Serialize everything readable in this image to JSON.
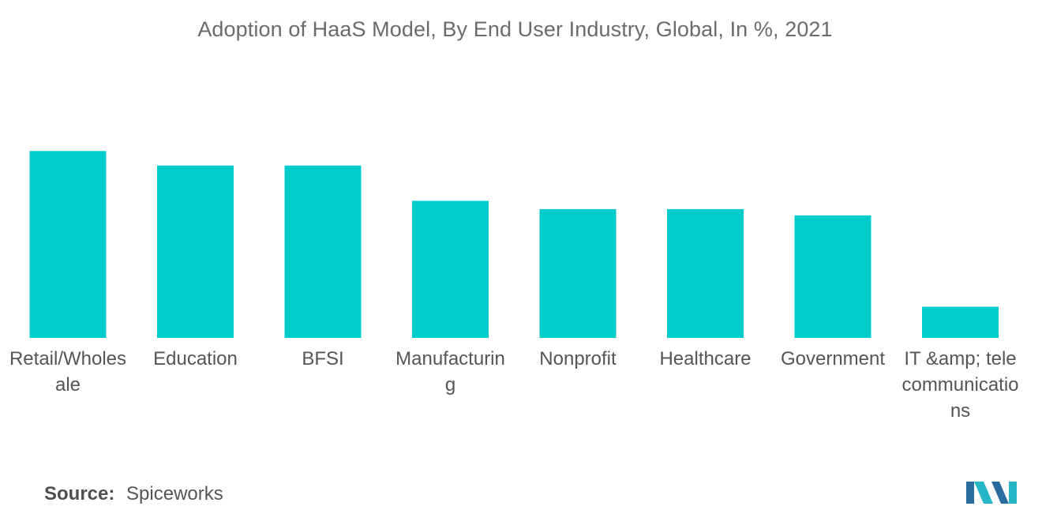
{
  "chart_data": {
    "type": "bar",
    "title": "Adoption of HaaS Model, By End User Industry, Global, In %, 2021",
    "categories": [
      "Retail/Wholesale",
      "Education",
      "BFSI",
      "Manufacturing",
      "Nonprofit",
      "Healthcare",
      "Government",
      "IT &amp; telecommunications"
    ],
    "values": [
      45,
      41.5,
      41.5,
      33,
      31,
      31,
      29.5,
      7.5
    ],
    "xlabel": "",
    "ylabel": "",
    "ylim": [
      0,
      50
    ],
    "grid": false,
    "bar_color": "#00cccc"
  },
  "source": {
    "label": "Source:",
    "value": "Spiceworks"
  },
  "logo": {
    "icon": "mordor-intelligence-logo",
    "colors": [
      "#2b6c9e",
      "#27b6c6"
    ]
  }
}
